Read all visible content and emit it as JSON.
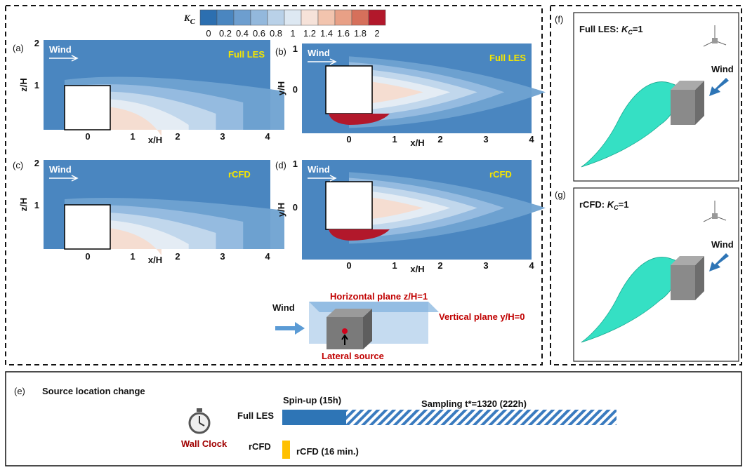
{
  "colorbar": {
    "symbol": "K",
    "sub": "C",
    "ticks": [
      "0",
      "0.2",
      "0.4",
      "0.6",
      "0.8",
      "1",
      "1.2",
      "1.4",
      "1.6",
      "1.8",
      "2"
    ]
  },
  "panels": [
    {
      "label": "(a)",
      "wind": "Wind",
      "method": "Full LES",
      "xlabel": "x/H",
      "ylabel": "z/H",
      "xticks": [
        "0",
        "1",
        "2",
        "3",
        "4"
      ],
      "yticks": [
        "1",
        "2"
      ]
    },
    {
      "label": "(b)",
      "wind": "Wind",
      "method": "Full LES",
      "xlabel": "x/H",
      "ylabel": "y/H",
      "xticks": [
        "0",
        "1",
        "2",
        "3",
        "4"
      ],
      "yticks": [
        "0",
        "1"
      ]
    },
    {
      "label": "(c)",
      "wind": "Wind",
      "method": "rCFD",
      "xlabel": "x/H",
      "ylabel": "z/H",
      "xticks": [
        "0",
        "1",
        "2",
        "3",
        "4"
      ],
      "yticks": [
        "1",
        "2"
      ]
    },
    {
      "label": "(d)",
      "wind": "Wind",
      "method": "rCFD",
      "xlabel": "x/H",
      "ylabel": "y/H",
      "xticks": [
        "0",
        "1",
        "2",
        "3",
        "4"
      ],
      "yticks": [
        "0",
        "1"
      ]
    }
  ],
  "schematic": {
    "wind": "Wind",
    "horizontal": "Horizontal plane z/H=1",
    "vertical": "Vertical plane y/H=0",
    "source": "Lateral source"
  },
  "iso": [
    {
      "label": "(f)",
      "prefix": "Full LES: ",
      "symbol": "K",
      "sub": "C",
      "suffix": "=1",
      "wind": "Wind"
    },
    {
      "label": "(g)",
      "prefix": "rCFD: ",
      "symbol": "K",
      "sub": "C",
      "suffix": "=1",
      "wind": "Wind"
    }
  ],
  "timeline": {
    "label": "(e)",
    "title": "Source location change",
    "clock": "Wall Clock",
    "full_les": "Full LES",
    "spinup": "Spin-up (15h)",
    "sampling": "Sampling t*=1320 (222h)",
    "rcfd": "rCFD",
    "rcfd_bar": "rCFD (16 min.)"
  }
}
